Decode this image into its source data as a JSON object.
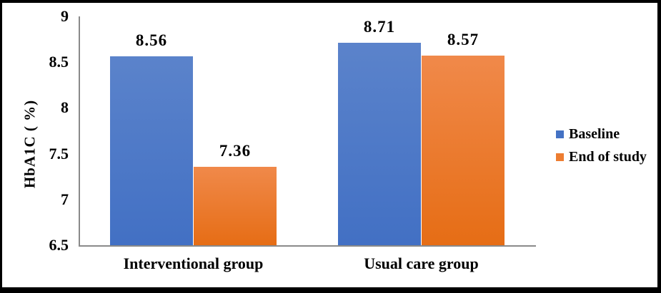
{
  "figure": {
    "background": "#ffffff",
    "border_color": "#000000"
  },
  "chart_data": {
    "type": "bar",
    "categories": [
      "Interventional group",
      "Usual care group"
    ],
    "series": [
      {
        "name": "Baseline",
        "color": "#4472C4",
        "gradient_top": "#5b83cb",
        "gradient_bottom": "#4270c4",
        "values": [
          8.56,
          8.71
        ],
        "labels": [
          "8.56",
          "8.71"
        ]
      },
      {
        "name": "End of study",
        "color": "#ED7D31",
        "gradient_top": "#f0894a",
        "gradient_bottom": "#e66d15",
        "values": [
          7.36,
          8.57
        ],
        "labels": [
          "7.36",
          "8.57"
        ]
      }
    ],
    "ylabel": "HbA1C ( %)",
    "ylim": [
      6.5,
      9
    ],
    "yticks": [
      9,
      8.5,
      8,
      7.5,
      7,
      6.5
    ],
    "ytick_labels": [
      "9",
      "8.5",
      "8",
      "7.5",
      "7",
      "6.5"
    ],
    "grid": false,
    "data_labels": true,
    "legend_position": "right",
    "axis_color": "#8a8a8a"
  }
}
